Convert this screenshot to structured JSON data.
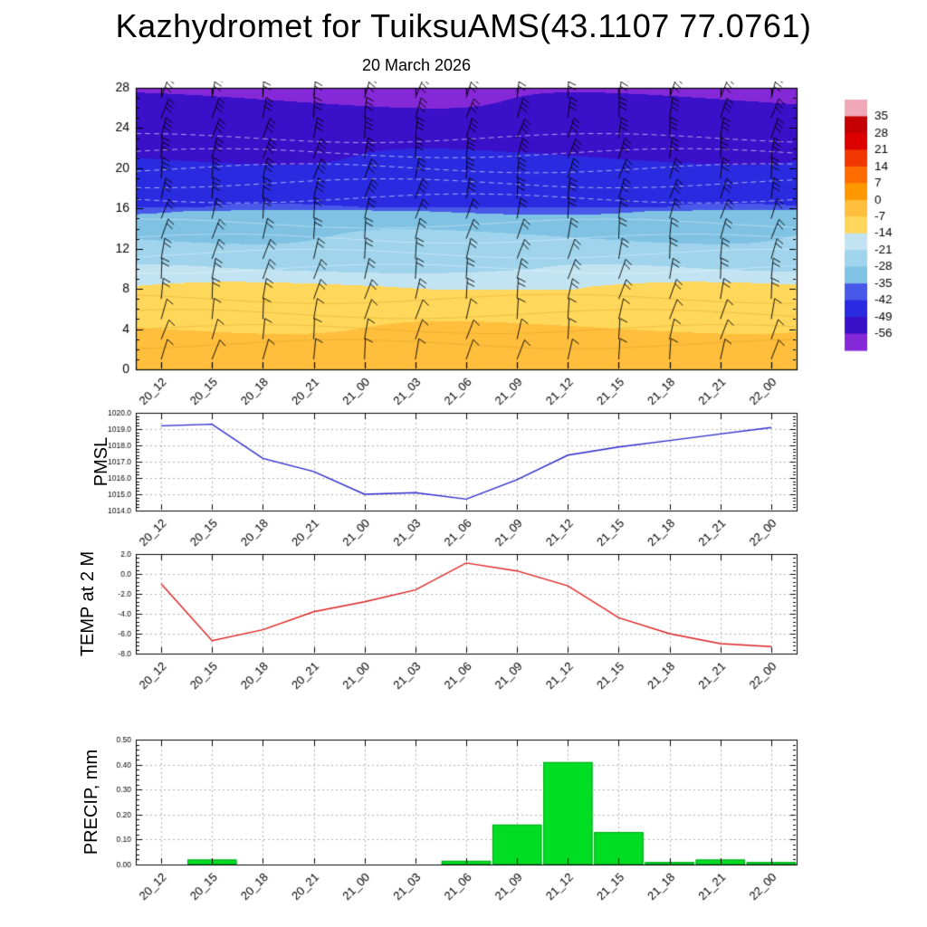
{
  "title": "Kazhydromet for TuiksuAMS(43.1107 77.0761)",
  "subtitle": "20 March 2026",
  "time_labels": [
    "20_12",
    "20_15",
    "20_18",
    "20_21",
    "21_00",
    "21_03",
    "21_06",
    "21_09",
    "21_12",
    "21_15",
    "21_18",
    "21_21",
    "22_00"
  ],
  "colors": {
    "pmsl_line": "#2828cc",
    "temp_line": "#dc2020",
    "precip_bar": "#00dd22",
    "precip_bar_edge": "#00a81c",
    "grid": "#a8a8a8",
    "axis": "#000000",
    "background": "#ffffff"
  },
  "chart_data": [
    {
      "type": "heatmap",
      "name": "temperature-wind-height-time-cross-section",
      "title": "20 March 2026",
      "x_labels_ref": "time_labels",
      "ylim": [
        0,
        28
      ],
      "y_ticks": [
        0,
        4,
        8,
        12,
        16,
        20,
        24,
        28
      ],
      "colorbar_levels": [
        35,
        28,
        21,
        14,
        7,
        0,
        -7,
        -14,
        -21,
        -28,
        -35,
        -42,
        -49,
        -56
      ],
      "colorbar_colors": [
        "#f0a8b8",
        "#c40000",
        "#dc0000",
        "#f03800",
        "#ff6c00",
        "#ff9800",
        "#ffbe3c",
        "#ffd75a",
        "#c2e4f2",
        "#9fd4ec",
        "#7fc2e4",
        "#4858e8",
        "#2a2ae0",
        "#3a10c8",
        "#8428d8"
      ],
      "temperature_profile": {
        "heights": [
          0,
          3,
          5,
          7,
          8.3,
          9,
          10,
          12,
          14,
          15,
          15.8,
          16.2,
          18,
          20,
          22,
          24,
          26,
          28
        ],
        "temps": [
          -2,
          -5.5,
          -8,
          -11,
          -13.8,
          -16.5,
          -21.5,
          -25.5,
          -29.5,
          -32,
          -35,
          -42.5,
          -45,
          -47.5,
          -50,
          -52.5,
          -55,
          -57.5
        ]
      },
      "wind_barb_levels": [
        1,
        3,
        5,
        7,
        9,
        11,
        13,
        15,
        17,
        19,
        21,
        23,
        25,
        27
      ]
    },
    {
      "type": "line",
      "name": "pmsl",
      "ylabel": "PMSL",
      "ylim": [
        1014,
        1020
      ],
      "y_ticks": [
        1014,
        1015,
        1016,
        1017,
        1018,
        1019,
        1020
      ],
      "tick_decimals": 1,
      "values": [
        1019.2,
        1019.3,
        1017.2,
        1016.4,
        1015.0,
        1015.1,
        1014.7,
        1015.9,
        1017.4,
        1017.9,
        1018.3,
        1018.7,
        1019.1
      ]
    },
    {
      "type": "line",
      "name": "temp-at-2m",
      "ylabel": "TEMP at 2 M",
      "ylim": [
        -8,
        2
      ],
      "y_ticks": [
        -8,
        -6,
        -4,
        -2,
        0,
        2
      ],
      "tick_decimals": 1,
      "values": [
        -1.0,
        -6.7,
        -5.6,
        -3.8,
        -2.8,
        -1.6,
        1.1,
        0.3,
        -1.2,
        -4.4,
        -6.0,
        -7.0,
        -7.3
      ]
    },
    {
      "type": "bar",
      "name": "precip",
      "ylabel": "PRECIP, mm",
      "ylim": [
        0,
        0.5
      ],
      "y_ticks": [
        0,
        0.1,
        0.2,
        0.3,
        0.4,
        0.5
      ],
      "tick_decimals": 2,
      "values": [
        0,
        0.02,
        0,
        0,
        0,
        0,
        0.015,
        0.16,
        0.41,
        0.13,
        0.01,
        0.02,
        0.01
      ]
    }
  ]
}
